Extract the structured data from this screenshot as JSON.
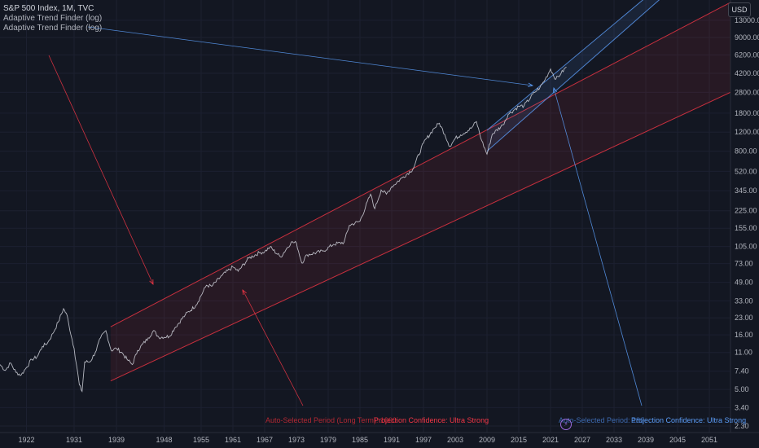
{
  "legend": {
    "title": "S&P 500 Index, 1M, TVC",
    "indicators": [
      "Adaptive Trend Finder (log)",
      "Adaptive Trend Finder (log)"
    ]
  },
  "currency": "USD",
  "labels": {
    "long_period_text": "Auto-Selected Period (Long Term): 1000",
    "long_confidence_text": "Projection Confidence: Ultra Strong",
    "short_period_text": "Auto-Selected Period: 180",
    "short_confidence_text": "Projection Confidence: Ultra Strong"
  },
  "colors": {
    "background": "#131722",
    "price_line": "#d1d4dc",
    "long_channel": "#f23645",
    "short_channel": "#5b9cf6"
  },
  "chart_data": {
    "type": "line",
    "title": "S&P 500 Index, 1M, TVC",
    "y_scale": "log",
    "ylim": [
      2.0,
      20000
    ],
    "xlim": [
      1917,
      2055
    ],
    "x_ticks": [
      1922,
      1931,
      1939,
      1948,
      1955,
      1961,
      1967,
      1973,
      1979,
      1985,
      1991,
      1997,
      2003,
      2009,
      2015,
      2021,
      2027,
      2033,
      2039,
      2045,
      2051
    ],
    "y_ticks": [
      2.3,
      3.4,
      5.0,
      7.4,
      11.0,
      16.0,
      23.0,
      33.0,
      49.0,
      73.0,
      105.0,
      155.0,
      225.0,
      345.0,
      520.0,
      800.0,
      1200.0,
      1800.0,
      2800.0,
      4200.0,
      6200.0,
      9000.0,
      13000.0
    ],
    "series": [
      {
        "x": [
          1917,
          1918,
          1919,
          1920,
          1921,
          1922,
          1923,
          1924,
          1925,
          1926,
          1927,
          1928,
          1929,
          1929.7,
          1930,
          1931,
          1932,
          1932.5,
          1933,
          1934,
          1935,
          1936,
          1937,
          1938,
          1939,
          1940,
          1941,
          1942,
          1943,
          1945,
          1946,
          1947,
          1949,
          1950,
          1952,
          1954,
          1956,
          1957,
          1959,
          1961,
          1962,
          1964,
          1966,
          1967,
          1968,
          1970,
          1972,
          1973,
          1974,
          1975,
          1978,
          1980,
          1982,
          1983,
          1985,
          1987,
          1987.8,
          1989,
          1990,
          1991,
          1993,
          1995,
          1997,
          1999,
          2000,
          2001,
          2002,
          2003,
          2004,
          2006,
          2007,
          2008,
          2009,
          2010,
          2012,
          2013,
          2015,
          2016,
          2018,
          2019,
          2020,
          2021,
          2022,
          2023,
          2024
        ],
        "values": [
          8.5,
          7.5,
          8.8,
          7.2,
          6.8,
          8.0,
          9.5,
          10.0,
          12.5,
          13.5,
          16.5,
          21.0,
          28.0,
          24.0,
          20.0,
          12.0,
          5.5,
          4.8,
          9.0,
          9.0,
          11.0,
          15.0,
          17.5,
          11.5,
          12.0,
          11.0,
          9.5,
          8.5,
          11.5,
          15.0,
          17.5,
          15.2,
          15.5,
          18.5,
          24.5,
          30.0,
          46.0,
          45.0,
          57.0,
          68.0,
          62.0,
          82.0,
          92.0,
          94.0,
          104.0,
          84.0,
          115.0,
          113.0,
          74.0,
          88.0,
          95.0,
          110.0,
          115.0,
          165.0,
          180.0,
          320.0,
          235.0,
          350.0,
          320.0,
          375.0,
          455.0,
          545.0,
          950.0,
          1300.0,
          1450.0,
          1150.0,
          880.0,
          1050.0,
          1130.0,
          1300.0,
          1500.0,
          1000.0,
          750.0,
          1150.0,
          1400.0,
          1750.0,
          2080.0,
          2100.0,
          2800.0,
          3100.0,
          3700.0,
          4600.0,
          3700.0,
          4200.0,
          4800.0
        ]
      }
    ],
    "channels": [
      {
        "lower": [
          {
            "x": 1937.9,
            "y": 6.0
          },
          {
            "x": 2055,
            "y": 2800
          }
        ],
        "upper": [
          {
            "x": 1937.9,
            "y": 19.0
          },
          {
            "x": 2055,
            "y": 19000
          }
        ]
      },
      {
        "lower": [
          {
            "x": 2009,
            "y": 800
          },
          {
            "x": 2042,
            "y": 21000
          }
        ],
        "upper": [
          {
            "x": 2009,
            "y": 1250
          },
          {
            "x": 2042,
            "y": 28000
          }
        ]
      }
    ]
  }
}
